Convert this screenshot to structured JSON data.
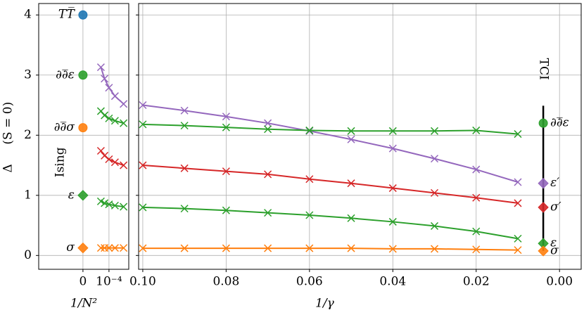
{
  "chart_data": [
    {
      "type": "line",
      "xlabel": "1/N²",
      "ylabel": "Δ",
      "ylabel_note": "(S = 0)",
      "annotation": "Ising",
      "x": [
        6.9e-05,
        8.3e-05,
        0.0001,
        0.000123,
        0.000156
      ],
      "xlim": [
        -0.00017,
        0.000176
      ],
      "xticks": [
        0,
        {
          "value": 0.0001,
          "label": "10⁻⁴"
        }
      ],
      "ylim": [
        -0.23,
        4.19
      ],
      "yticks": [
        0,
        1,
        2,
        3,
        4
      ],
      "grid": true,
      "series": [
        {
          "color": "#9467bd",
          "values": [
            3.13,
            2.94,
            2.79,
            2.65,
            2.52
          ]
        },
        {
          "color": "#2ca02c",
          "values": [
            2.4,
            2.33,
            2.28,
            2.24,
            2.2
          ]
        },
        {
          "color": "#d62728",
          "values": [
            1.74,
            1.66,
            1.6,
            1.55,
            1.5
          ]
        },
        {
          "color": "#2ca02c",
          "values": [
            0.9,
            0.87,
            0.85,
            0.83,
            0.81
          ]
        },
        {
          "color": "#ff7f0e",
          "values": [
            0.125,
            0.125,
            0.125,
            0.125,
            0.125
          ]
        }
      ],
      "points": [
        {
          "label": "TT̅",
          "x": 0,
          "y": 4,
          "color": "#1f77b4",
          "marker": "circle"
        },
        {
          "label": "∂∂̅ε",
          "x": 0,
          "y": 3,
          "color": "#2ca02c",
          "marker": "circle"
        },
        {
          "label": "∂∂̅σ",
          "x": 0,
          "y": 2.125,
          "color": "#ff7f0e",
          "marker": "circle"
        },
        {
          "label": "ε",
          "x": 0,
          "y": 1,
          "color": "#2ca02c",
          "marker": "diamond"
        },
        {
          "label": "σ",
          "x": 0,
          "y": 0.125,
          "color": "#ff7f0e",
          "marker": "diamond"
        }
      ]
    },
    {
      "type": "line",
      "xlabel": "1/γ",
      "annotation": "TCI",
      "x": [
        0.1,
        0.09,
        0.08,
        0.07,
        0.06,
        0.05,
        0.04,
        0.03,
        0.02,
        0.01
      ],
      "xlim": [
        0.101,
        -0.0052
      ],
      "xticks": [
        {
          "value": 0.1,
          "label": "0.10"
        },
        0.08,
        0.06,
        0.04,
        0.02,
        {
          "value": 0,
          "label": "0.00"
        }
      ],
      "ylim": [
        -0.23,
        4.19
      ],
      "yticks": [
        0,
        1,
        2,
        3,
        4
      ],
      "grid": true,
      "series": [
        {
          "color": "#9467bd",
          "values": [
            2.5,
            2.41,
            2.31,
            2.2,
            2.07,
            1.93,
            1.78,
            1.61,
            1.43,
            1.22
          ]
        },
        {
          "color": "#2ca02c",
          "values": [
            2.18,
            2.16,
            2.13,
            2.1,
            2.08,
            2.07,
            2.07,
            2.07,
            2.08,
            2.02
          ]
        },
        {
          "color": "#d62728",
          "values": [
            1.5,
            1.45,
            1.4,
            1.35,
            1.27,
            1.2,
            1.12,
            1.04,
            0.96,
            0.87
          ]
        },
        {
          "color": "#2ca02c",
          "values": [
            0.8,
            0.78,
            0.75,
            0.71,
            0.67,
            0.62,
            0.56,
            0.49,
            0.4,
            0.28
          ]
        },
        {
          "color": "#ff7f0e",
          "values": [
            0.12,
            0.12,
            0.12,
            0.12,
            0.12,
            0.12,
            0.11,
            0.11,
            0.1,
            0.09
          ]
        }
      ],
      "segment": {
        "x": 0.0039,
        "y": [
          0.075,
          2.49
        ],
        "color": "#000000"
      },
      "points": [
        {
          "label": "∂∂̅ε",
          "x": 0.0039,
          "y": 2.2,
          "color": "#2ca02c",
          "marker": "circle"
        },
        {
          "label": "ε′",
          "x": 0.0039,
          "y": 1.2,
          "color": "#9467bd",
          "marker": "diamond"
        },
        {
          "label": "σ′",
          "x": 0.0039,
          "y": 0.8,
          "color": "#d62728",
          "marker": "diamond"
        },
        {
          "label": "ε",
          "x": 0.0039,
          "y": 0.2,
          "color": "#2ca02c",
          "marker": "diamond"
        },
        {
          "label": "σ",
          "x": 0.0039,
          "y": 0.075,
          "color": "#ff7f0e",
          "marker": "diamond"
        }
      ]
    }
  ]
}
